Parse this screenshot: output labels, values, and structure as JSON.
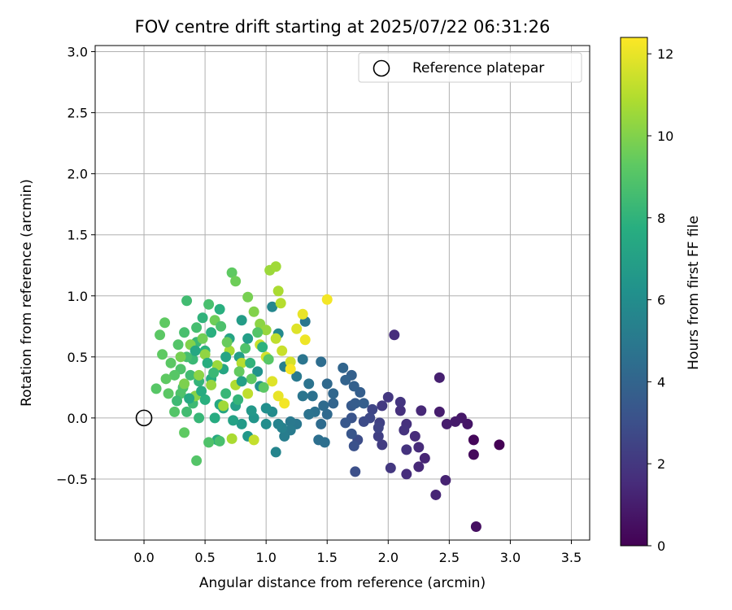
{
  "chart_data": {
    "type": "scatter",
    "title": "FOV centre drift starting at 2025/07/22 06:31:26",
    "xlabel": "Angular distance from reference (arcmin)",
    "ylabel": "Rotation from reference (arcmin)",
    "xlim": [
      -0.4,
      3.65
    ],
    "ylim": [
      -1.0,
      3.05
    ],
    "x_ticks": [
      0.0,
      0.5,
      1.0,
      1.5,
      2.0,
      2.5,
      3.0,
      3.5
    ],
    "x_tick_labels": [
      "0.0",
      "0.5",
      "1.0",
      "1.5",
      "2.0",
      "2.5",
      "3.0",
      "3.5"
    ],
    "y_ticks": [
      -0.5,
      0.0,
      0.5,
      1.0,
      1.5,
      2.0,
      2.5,
      3.0
    ],
    "y_tick_labels": [
      "−0.5",
      "0.0",
      "0.5",
      "1.0",
      "1.5",
      "2.0",
      "2.5",
      "3.0"
    ],
    "grid": true,
    "legend": {
      "position": "top-right",
      "entries": [
        {
          "label": "Reference platepar",
          "marker": "open-circle",
          "x": 0.0,
          "y": 0.0
        }
      ]
    },
    "colorbar": {
      "label": "Hours from first FF file",
      "colormap": "viridis",
      "range": [
        0,
        12.4
      ],
      "ticks": [
        0,
        2,
        4,
        6,
        8,
        10,
        12
      ],
      "tick_labels": [
        "0",
        "2",
        "4",
        "6",
        "8",
        "10",
        "12"
      ]
    },
    "points": [
      [
        2.91,
        -0.22,
        0.0
      ],
      [
        2.7,
        -0.18,
        0.2
      ],
      [
        2.7,
        -0.3,
        0.3
      ],
      [
        2.72,
        -0.89,
        0.5
      ],
      [
        2.65,
        -0.05,
        0.7
      ],
      [
        2.6,
        0.0,
        0.8
      ],
      [
        2.55,
        -0.03,
        0.9
      ],
      [
        2.48,
        -0.05,
        1.0
      ],
      [
        2.42,
        0.05,
        1.0
      ],
      [
        2.42,
        0.33,
        1.1
      ],
      [
        2.47,
        -0.51,
        1.2
      ],
      [
        2.39,
        -0.63,
        1.3
      ],
      [
        2.3,
        -0.33,
        1.3
      ],
      [
        2.25,
        -0.4,
        1.4
      ],
      [
        2.27,
        0.06,
        1.4
      ],
      [
        2.25,
        -0.24,
        1.5
      ],
      [
        2.22,
        -0.15,
        1.5
      ],
      [
        2.05,
        0.68,
        1.6
      ],
      [
        2.15,
        -0.46,
        1.6
      ],
      [
        2.15,
        -0.05,
        1.7
      ],
      [
        2.1,
        0.06,
        1.7
      ],
      [
        2.13,
        -0.1,
        1.8
      ],
      [
        2.15,
        -0.26,
        1.8
      ],
      [
        2.1,
        0.13,
        1.9
      ],
      [
        2.02,
        -0.41,
        2.0
      ],
      [
        2.0,
        0.17,
        2.0
      ],
      [
        1.95,
        0.1,
        2.1
      ],
      [
        1.95,
        -0.22,
        2.2
      ],
      [
        1.92,
        -0.15,
        2.3
      ],
      [
        1.93,
        -0.04,
        2.4
      ],
      [
        1.92,
        -0.08,
        2.5
      ],
      [
        1.87,
        0.07,
        2.6
      ],
      [
        1.85,
        0.0,
        2.7
      ],
      [
        1.8,
        -0.03,
        2.8
      ],
      [
        1.75,
        -0.18,
        2.9
      ],
      [
        1.73,
        -0.44,
        3.0
      ],
      [
        1.72,
        -0.23,
        3.1
      ],
      [
        1.7,
        0.0,
        3.2
      ],
      [
        1.7,
        -0.13,
        3.3
      ],
      [
        1.65,
        -0.04,
        3.4
      ],
      [
        1.7,
        0.1,
        3.5
      ],
      [
        1.73,
        0.12,
        3.6
      ],
      [
        1.77,
        0.21,
        3.7
      ],
      [
        1.8,
        0.12,
        3.7
      ],
      [
        1.72,
        0.26,
        3.8
      ],
      [
        1.7,
        0.35,
        3.8
      ],
      [
        1.65,
        0.31,
        3.9
      ],
      [
        1.63,
        0.41,
        4.0
      ],
      [
        1.55,
        0.12,
        4.0
      ],
      [
        1.55,
        0.2,
        4.1
      ],
      [
        1.5,
        0.28,
        4.2
      ],
      [
        1.5,
        0.03,
        4.2
      ],
      [
        1.47,
        0.1,
        4.3
      ],
      [
        1.45,
        -0.05,
        4.3
      ],
      [
        1.45,
        0.46,
        4.4
      ],
      [
        1.43,
        -0.18,
        4.5
      ],
      [
        1.48,
        -0.2,
        4.5
      ],
      [
        1.4,
        0.05,
        4.6
      ],
      [
        1.38,
        0.18,
        4.6
      ],
      [
        1.35,
        0.28,
        4.7
      ],
      [
        1.35,
        0.03,
        4.7
      ],
      [
        1.3,
        0.18,
        4.8
      ],
      [
        1.3,
        0.48,
        4.8
      ],
      [
        1.32,
        0.79,
        4.9
      ],
      [
        1.25,
        -0.05,
        4.9
      ],
      [
        1.25,
        0.34,
        5.0
      ],
      [
        1.2,
        -0.03,
        5.0
      ],
      [
        1.2,
        -0.1,
        5.1
      ],
      [
        1.15,
        -0.15,
        5.2
      ],
      [
        1.15,
        0.42,
        5.3
      ],
      [
        1.13,
        -0.08,
        5.4
      ],
      [
        1.1,
        -0.05,
        5.5
      ],
      [
        1.08,
        -0.28,
        5.6
      ],
      [
        1.05,
        0.91,
        5.7
      ],
      [
        1.1,
        0.69,
        5.8
      ],
      [
        1.05,
        0.05,
        5.9
      ],
      [
        1.0,
        -0.05,
        6.0
      ],
      [
        1.0,
        0.08,
        6.1
      ],
      [
        0.95,
        0.26,
        6.2
      ],
      [
        0.93,
        0.38,
        6.3
      ],
      [
        0.9,
        0.0,
        6.4
      ],
      [
        0.85,
        -0.15,
        6.5
      ],
      [
        0.88,
        0.06,
        6.6
      ],
      [
        0.8,
        -0.05,
        6.7
      ],
      [
        0.8,
        0.8,
        6.8
      ],
      [
        0.78,
        0.5,
        6.9
      ],
      [
        0.75,
        0.1,
        7.0
      ],
      [
        0.73,
        -0.02,
        7.1
      ],
      [
        0.7,
        0.65,
        7.2
      ],
      [
        0.65,
        0.08,
        7.2
      ],
      [
        0.65,
        0.4,
        7.3
      ],
      [
        0.62,
        0.11,
        7.4
      ],
      [
        0.6,
        -0.18,
        7.5
      ],
      [
        0.58,
        0.0,
        7.6
      ],
      [
        0.55,
        0.32,
        7.7
      ],
      [
        0.55,
        0.7,
        7.8
      ],
      [
        0.5,
        0.15,
        7.8
      ],
      [
        0.5,
        0.55,
        7.9
      ],
      [
        0.48,
        0.82,
        8.0
      ],
      [
        0.45,
        0.3,
        8.1
      ],
      [
        0.45,
        0.0,
        8.2
      ],
      [
        0.43,
        0.62,
        8.3
      ],
      [
        0.4,
        0.48,
        8.3
      ],
      [
        0.4,
        0.12,
        8.4
      ],
      [
        0.38,
        0.35,
        8.5
      ],
      [
        0.35,
        0.05,
        8.5
      ],
      [
        0.35,
        0.5,
        8.6
      ],
      [
        0.33,
        0.7,
        8.7
      ],
      [
        0.32,
        0.25,
        8.8
      ],
      [
        0.3,
        0.4,
        8.9
      ],
      [
        0.3,
        0.2,
        8.9
      ],
      [
        0.28,
        0.6,
        9.0
      ],
      [
        0.25,
        0.05,
        9.0
      ],
      [
        0.25,
        0.35,
        9.1
      ],
      [
        0.22,
        0.45,
        9.2
      ],
      [
        0.2,
        0.2,
        9.2
      ],
      [
        0.18,
        0.32,
        9.3
      ],
      [
        0.17,
        0.78,
        9.3
      ],
      [
        0.15,
        0.52,
        9.3
      ],
      [
        0.13,
        0.68,
        9.2
      ],
      [
        0.1,
        0.24,
        9.1
      ],
      [
        0.33,
        -0.12,
        9.3
      ],
      [
        0.43,
        -0.35,
        9.0
      ],
      [
        0.53,
        -0.2,
        8.9
      ],
      [
        0.62,
        -0.19,
        8.7
      ],
      [
        0.72,
        1.19,
        9.3
      ],
      [
        0.75,
        1.12,
        9.6
      ],
      [
        0.85,
        0.99,
        9.8
      ],
      [
        0.9,
        0.87,
        10.0
      ],
      [
        0.95,
        0.77,
        10.2
      ],
      [
        1.0,
        0.72,
        10.4
      ],
      [
        1.03,
        1.21,
        10.5
      ],
      [
        1.08,
        1.24,
        10.6
      ],
      [
        1.1,
        1.04,
        10.8
      ],
      [
        1.12,
        0.94,
        11.0
      ],
      [
        1.08,
        0.65,
        11.2
      ],
      [
        1.13,
        0.55,
        11.4
      ],
      [
        1.2,
        0.46,
        11.6
      ],
      [
        1.25,
        0.73,
        11.8
      ],
      [
        1.3,
        0.85,
        12.0
      ],
      [
        1.32,
        0.64,
        12.1
      ],
      [
        1.5,
        0.97,
        12.2
      ],
      [
        1.2,
        0.4,
        12.3
      ],
      [
        1.15,
        0.12,
        12.2
      ],
      [
        1.1,
        0.18,
        12.0
      ],
      [
        1.05,
        0.3,
        11.8
      ],
      [
        1.0,
        0.5,
        11.6
      ],
      [
        0.95,
        0.6,
        11.4
      ],
      [
        0.9,
        -0.18,
        11.3
      ],
      [
        0.85,
        0.2,
        11.2
      ],
      [
        0.8,
        0.45,
        11.0
      ],
      [
        0.75,
        0.27,
        10.9
      ],
      [
        0.72,
        -0.17,
        10.8
      ],
      [
        0.7,
        0.55,
        10.7
      ],
      [
        0.65,
        0.1,
        10.6
      ],
      [
        0.6,
        0.43,
        10.5
      ],
      [
        0.55,
        0.27,
        10.4
      ],
      [
        0.5,
        0.52,
        10.3
      ],
      [
        0.45,
        0.35,
        10.2
      ],
      [
        0.42,
        0.18,
        10.1
      ],
      [
        0.38,
        0.6,
        10.0
      ],
      [
        0.33,
        0.28,
        9.9
      ],
      [
        0.3,
        0.5,
        9.8
      ],
      [
        0.48,
        0.65,
        9.7
      ],
      [
        0.58,
        0.8,
        9.6
      ],
      [
        0.68,
        0.62,
        9.5
      ],
      [
        0.78,
        0.38,
        9.4
      ],
      [
        0.88,
        0.32,
        9.3
      ],
      [
        0.98,
        0.25,
        9.2
      ],
      [
        1.02,
        0.48,
        9.1
      ],
      [
        0.93,
        0.7,
        9.0
      ],
      [
        0.83,
        0.57,
        8.9
      ],
      [
        0.63,
        0.75,
        8.8
      ],
      [
        0.53,
        0.93,
        8.7
      ],
      [
        0.43,
        0.74,
        8.6
      ],
      [
        0.35,
        0.96,
        8.5
      ],
      [
        0.27,
        0.14,
        8.4
      ],
      [
        0.57,
        0.37,
        8.3
      ],
      [
        0.67,
        0.2,
        8.2
      ],
      [
        0.77,
        0.15,
        8.1
      ],
      [
        0.87,
        0.45,
        8.0
      ],
      [
        0.97,
        0.58,
        7.9
      ],
      [
        0.62,
        0.89,
        7.8
      ],
      [
        0.52,
        0.45,
        7.7
      ],
      [
        0.47,
        0.22,
        7.6
      ],
      [
        0.37,
        0.16,
        7.5
      ],
      [
        0.42,
        0.55,
        7.4
      ],
      [
        0.67,
        0.5,
        7.2
      ],
      [
        0.8,
        0.3,
        7.0
      ],
      [
        0.85,
        0.65,
        6.9
      ]
    ]
  }
}
